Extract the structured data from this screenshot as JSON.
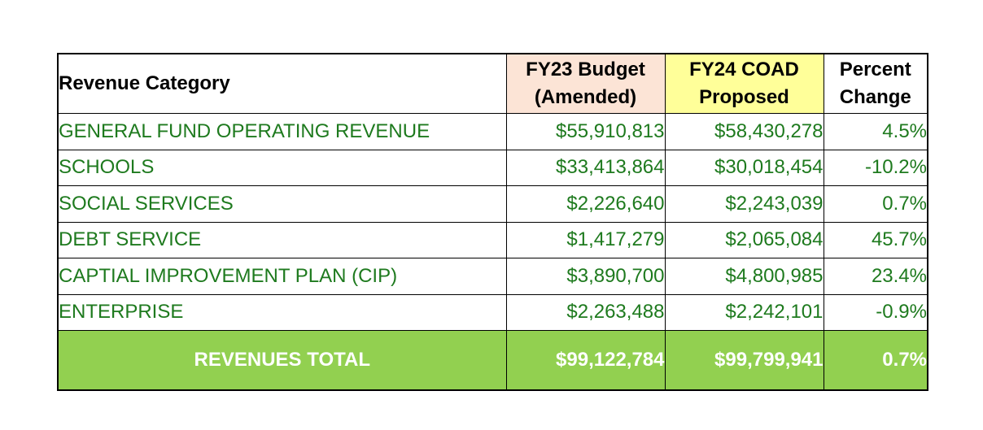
{
  "headers": {
    "category": "Revenue Category",
    "fy23_line1": "FY23 Budget",
    "fy23_line2": "(Amended)",
    "fy24_line1": "FY24 COAD",
    "fy24_line2": "Proposed",
    "pct_line1": "Percent",
    "pct_line2": "Change"
  },
  "rows": [
    {
      "category": "GENERAL FUND OPERATING REVENUE",
      "fy23": "$55,910,813",
      "fy24": "$58,430,278",
      "pct": "4.5%",
      "negative": false
    },
    {
      "category": "SCHOOLS",
      "fy23": "$33,413,864",
      "fy24": "$30,018,454",
      "pct": "-10.2%",
      "negative": true
    },
    {
      "category": "SOCIAL SERVICES",
      "fy23": "$2,226,640",
      "fy24": "$2,243,039",
      "pct": "0.7%",
      "negative": false
    },
    {
      "category": "DEBT SERVICE",
      "fy23": "$1,417,279",
      "fy24": "$2,065,084",
      "pct": "45.7%",
      "negative": false
    },
    {
      "category": "CAPTIAL IMPROVEMENT PLAN (CIP)",
      "fy23": "$3,890,700",
      "fy24": "$4,800,985",
      "pct": "23.4%",
      "negative": false
    },
    {
      "category": "ENTERPRISE",
      "fy23": "$2,263,488",
      "fy24": "$2,242,101",
      "pct": "-0.9%",
      "negative": true
    }
  ],
  "total": {
    "label": "REVENUES TOTAL",
    "fy23": "$99,122,784",
    "fy24": "$99,799,941",
    "pct": "0.7%"
  },
  "colors": {
    "fy23_header": "#fce4d6",
    "fy24_header": "#ffff99",
    "data_text": "#1e7a1e",
    "negative_text": "#e0201c",
    "total_background": "#92d050",
    "total_text": "#ffffff"
  }
}
